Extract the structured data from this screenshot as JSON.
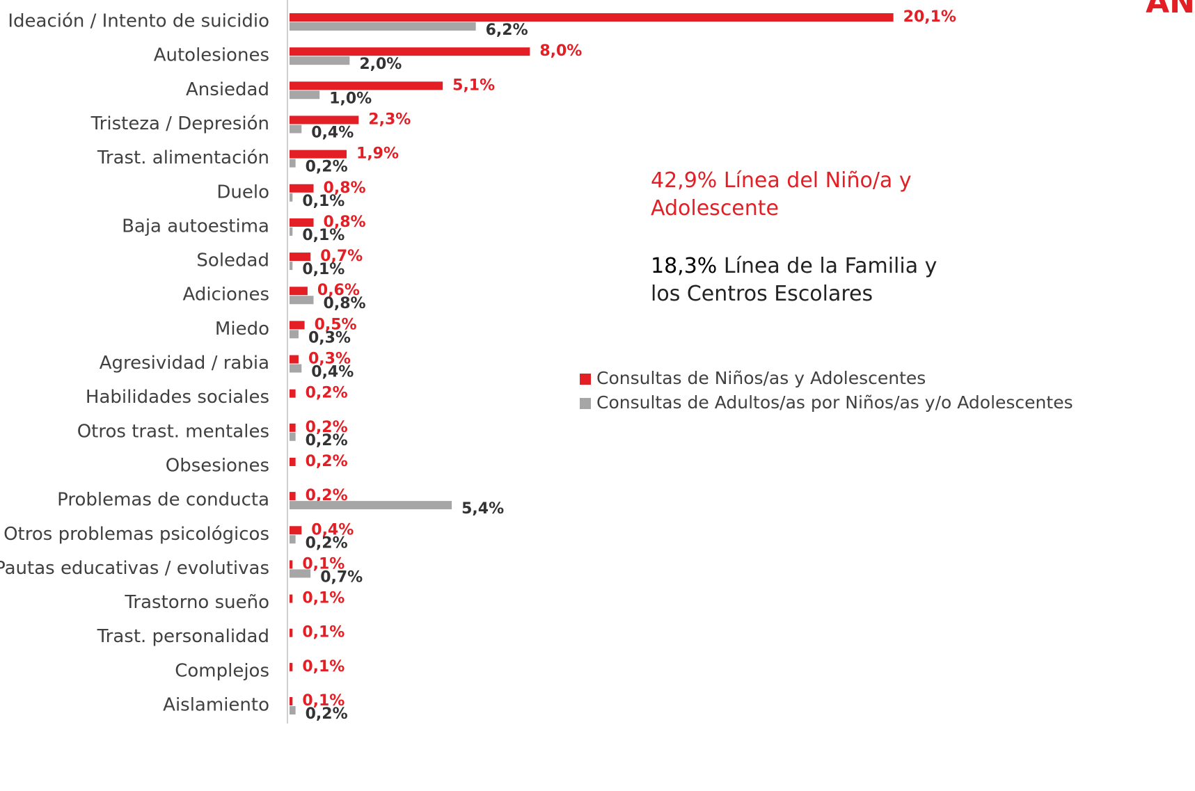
{
  "chart_data": {
    "type": "bar",
    "orientation": "horizontal",
    "title": "AN",
    "categories": [
      "Ideación / Intento de suicidio",
      "Autolesiones",
      "Ansiedad",
      "Tristeza / Depresión",
      "Trast. alimentación",
      "Duelo",
      "Baja autoestima",
      "Soledad",
      "Adiciones",
      "Miedo",
      "Agresividad / rabia",
      "Habilidades sociales",
      "Otros trast. mentales",
      "Obsesiones",
      "Problemas de conducta",
      "Otros problemas psicológicos",
      "Pautas educativas / evolutivas",
      "Trastorno sueño",
      "Trast. personalidad",
      "Complejos",
      "Aislamiento"
    ],
    "series": [
      {
        "name": "Consultas de Niños/as y Adolescentes",
        "color": "#e31e24",
        "label_color": "#e31e24",
        "values": [
          20.1,
          8.0,
          5.1,
          2.3,
          1.9,
          0.8,
          0.8,
          0.7,
          0.6,
          0.5,
          0.3,
          0.2,
          0.2,
          0.2,
          0.2,
          0.4,
          0.1,
          0.1,
          0.1,
          0.1,
          0.1
        ],
        "value_labels": [
          "20,1%",
          "8,0%",
          "5,1%",
          "2,3%",
          "1,9%",
          "0,8%",
          "0,8%",
          "0,7%",
          "0,6%",
          "0,5%",
          "0,3%",
          "0,2%",
          "0,2%",
          "0,2%",
          "0,2%",
          "0,4%",
          "0,1%",
          "0,1%",
          "0,1%",
          "0,1%",
          "0,1%"
        ]
      },
      {
        "name": "Consultas de Adultos/as por Niños/as y/o Adolescentes",
        "color": "#a6a6a6",
        "label_color": "#333333",
        "values": [
          6.2,
          2.0,
          1.0,
          0.4,
          0.2,
          0.1,
          0.1,
          0.1,
          0.8,
          0.3,
          0.4,
          null,
          0.2,
          null,
          5.4,
          0.2,
          0.7,
          null,
          null,
          null,
          0.2
        ],
        "value_labels": [
          "6,2%",
          "2,0%",
          "1,0%",
          "0,4%",
          "0,2%",
          "0,1%",
          "0,1%",
          "0,1%",
          "0,8%",
          "0,3%",
          "0,4%",
          null,
          "0,2%",
          null,
          "5,4%",
          "0,2%",
          "0,7%",
          null,
          null,
          null,
          "0,2%"
        ]
      }
    ],
    "xlim": [
      0,
      30
    ],
    "annotations": [
      {
        "highlight": "42,9%",
        "text": "Línea del Niño/a y Adolescente",
        "color": "#e31e24",
        "highlight_color": "#e31e24"
      },
      {
        "highlight": "18,3%",
        "text": "Línea de la Familia y los Centros Escolares",
        "color": "#222222",
        "highlight_color": "#000000"
      }
    ]
  }
}
